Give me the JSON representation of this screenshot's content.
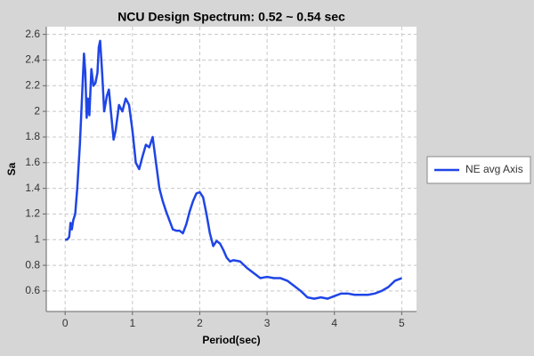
{
  "chart_data": {
    "type": "line",
    "title": "NCU Design Spectrum: 0.52 ~ 0.54 sec",
    "x_label": "Period(sec)",
    "y_label": "Sa",
    "xlim": [
      -0.28,
      5.22
    ],
    "ylim": [
      0.44,
      2.66
    ],
    "xticks": [
      0,
      1,
      2,
      3,
      4,
      5
    ],
    "yticks": [
      0.6,
      0.8,
      1,
      1.2,
      1.4,
      1.6,
      1.8,
      2,
      2.2,
      2.4,
      2.6
    ],
    "grid": true,
    "legend": "right",
    "series": [
      {
        "name": "NE avg Axis",
        "color": "#1f45e6",
        "x": [
          0,
          0.03,
          0.06,
          0.08,
          0.1,
          0.12,
          0.15,
          0.18,
          0.22,
          0.25,
          0.28,
          0.3,
          0.32,
          0.34,
          0.36,
          0.39,
          0.42,
          0.45,
          0.48,
          0.5,
          0.52,
          0.55,
          0.58,
          0.62,
          0.65,
          0.68,
          0.72,
          0.75,
          0.8,
          0.85,
          0.9,
          0.95,
          1.0,
          1.05,
          1.1,
          1.15,
          1.2,
          1.25,
          1.3,
          1.35,
          1.4,
          1.45,
          1.5,
          1.55,
          1.6,
          1.65,
          1.7,
          1.75,
          1.8,
          1.85,
          1.9,
          1.95,
          2.0,
          2.05,
          2.1,
          2.15,
          2.2,
          2.25,
          2.3,
          2.35,
          2.4,
          2.45,
          2.5,
          2.6,
          2.7,
          2.8,
          2.9,
          3.0,
          3.1,
          3.2,
          3.3,
          3.4,
          3.5,
          3.6,
          3.7,
          3.8,
          3.9,
          4.0,
          4.1,
          4.2,
          4.3,
          4.4,
          4.5,
          4.6,
          4.7,
          4.8,
          4.9,
          5.0
        ],
        "values": [
          1.0,
          1.0,
          1.02,
          1.13,
          1.08,
          1.15,
          1.2,
          1.4,
          1.75,
          2.1,
          2.45,
          2.3,
          1.95,
          2.1,
          1.97,
          2.33,
          2.2,
          2.22,
          2.3,
          2.5,
          2.55,
          2.3,
          2.0,
          2.12,
          2.17,
          2.0,
          1.78,
          1.85,
          2.05,
          2.0,
          2.1,
          2.05,
          1.85,
          1.6,
          1.55,
          1.65,
          1.74,
          1.72,
          1.8,
          1.6,
          1.4,
          1.3,
          1.22,
          1.15,
          1.08,
          1.07,
          1.07,
          1.05,
          1.12,
          1.22,
          1.3,
          1.36,
          1.37,
          1.33,
          1.2,
          1.05,
          0.95,
          0.99,
          0.97,
          0.92,
          0.86,
          0.83,
          0.84,
          0.83,
          0.78,
          0.74,
          0.7,
          0.71,
          0.7,
          0.7,
          0.68,
          0.64,
          0.6,
          0.55,
          0.54,
          0.55,
          0.54,
          0.56,
          0.58,
          0.58,
          0.57,
          0.57,
          0.57,
          0.58,
          0.6,
          0.63,
          0.68,
          0.7
        ]
      }
    ]
  }
}
